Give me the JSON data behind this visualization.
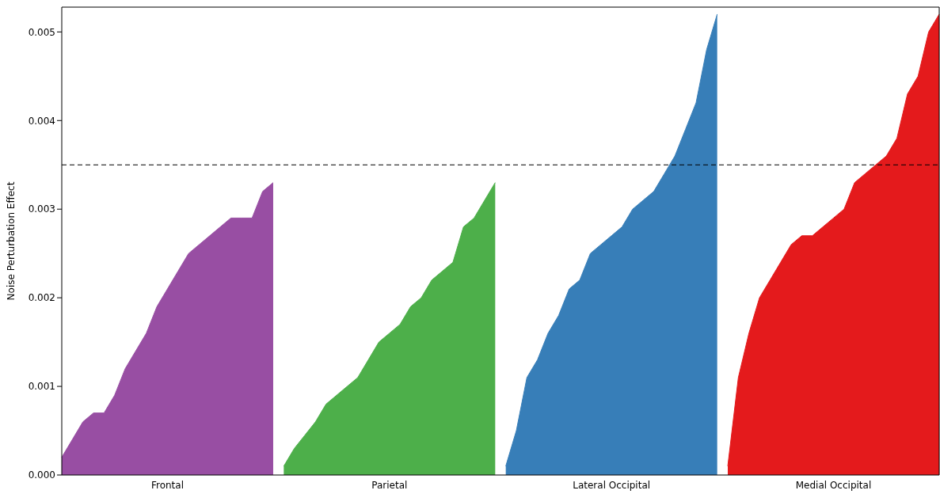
{
  "chart_data": {
    "type": "area",
    "ylabel": "Noise Perturbation Effect",
    "categories": [
      null,
      null,
      null,
      null,
      null,
      null,
      null,
      null,
      null,
      null,
      "Frontal",
      null,
      null,
      null,
      null,
      null,
      null,
      null,
      null,
      null,
      null,
      null,
      null,
      null,
      null,
      null,
      null,
      null,
      null,
      null,
      null,
      "Parietal",
      null,
      null,
      null,
      null,
      null,
      null,
      null,
      null,
      null,
      null,
      null,
      null,
      null,
      null,
      null,
      null,
      null,
      null,
      null,
      null,
      "Lateral Occipital",
      null,
      null,
      null,
      null,
      null,
      null,
      null,
      null,
      null,
      null,
      null,
      null,
      null,
      null,
      null,
      null,
      null,
      null,
      null,
      null,
      "Medial Occipital",
      null,
      null,
      null,
      null,
      null,
      null,
      null,
      null,
      null,
      null
    ],
    "ylim": [
      0,
      0.00528
    ],
    "yticks": [
      {
        "value": 0,
        "label": "0.000"
      },
      0.001,
      0.002,
      0.003,
      0.004,
      0.005
    ],
    "grid": false,
    "legend": false,
    "ref_lines": [
      {
        "axis": "y",
        "value": 0.0035,
        "color": "#000000",
        "line_style": "dashed"
      }
    ],
    "series": [
      {
        "color": "#984ea3",
        "values": [
          0.0002,
          0.0004,
          0.0006,
          0.0007,
          0.0007,
          0.0009,
          0.0012,
          0.0014,
          0.0016,
          0.0019,
          0.0021,
          0.0023,
          0.0025,
          0.0026,
          0.0027,
          0.0028,
          0.0029,
          0.0029,
          0.0029,
          0.0032,
          0.0033,
          null,
          null,
          null,
          null,
          null,
          null,
          null,
          null,
          null,
          null,
          null,
          null,
          null,
          null,
          null,
          null,
          null,
          null,
          null,
          null,
          null,
          null,
          null,
          null,
          null,
          null,
          null,
          null,
          null,
          null,
          null,
          null,
          null,
          null,
          null,
          null,
          null,
          null,
          null,
          null,
          null,
          null,
          null,
          null,
          null,
          null,
          null,
          null,
          null,
          null,
          null,
          null,
          null,
          null,
          null,
          null,
          null,
          null,
          null,
          null,
          null,
          null,
          null
        ]
      },
      {
        "color": "#4daf4a",
        "values": [
          null,
          null,
          null,
          null,
          null,
          null,
          null,
          null,
          null,
          null,
          null,
          null,
          null,
          null,
          null,
          null,
          null,
          null,
          null,
          null,
          null,
          0.0001,
          0.0003,
          0.00045,
          0.0006,
          0.0008,
          0.0009,
          0.001,
          0.0011,
          0.0013,
          0.0015,
          0.0016,
          0.0017,
          0.0019,
          0.002,
          0.0022,
          0.0023,
          0.0024,
          0.0028,
          0.0029,
          0.0031,
          0.0033,
          null,
          null,
          null,
          null,
          null,
          null,
          null,
          null,
          null,
          null,
          null,
          null,
          null,
          null,
          null,
          null,
          null,
          null,
          null,
          null,
          null,
          null,
          null,
          null,
          null,
          null,
          null,
          null,
          null,
          null,
          null,
          null,
          null,
          null,
          null,
          null,
          null,
          null,
          null,
          null,
          null,
          null
        ]
      },
      {
        "color": "#377eb8",
        "values": [
          null,
          null,
          null,
          null,
          null,
          null,
          null,
          null,
          null,
          null,
          null,
          null,
          null,
          null,
          null,
          null,
          null,
          null,
          null,
          null,
          null,
          null,
          null,
          null,
          null,
          null,
          null,
          null,
          null,
          null,
          null,
          null,
          null,
          null,
          null,
          null,
          null,
          null,
          null,
          null,
          null,
          null,
          0.0001,
          0.0005,
          0.0011,
          0.0013,
          0.0016,
          0.0018,
          0.0021,
          0.0022,
          0.0025,
          0.0026,
          0.0027,
          0.0028,
          0.003,
          0.0031,
          0.0032,
          0.0034,
          0.0036,
          0.0039,
          0.0042,
          0.0048,
          0.0052,
          null,
          null,
          null,
          null,
          null,
          null,
          null,
          null,
          null,
          null,
          null,
          null,
          null,
          null,
          null,
          null,
          null,
          null,
          null,
          null,
          null
        ]
      },
      {
        "color": "#e41a1c",
        "values": [
          null,
          null,
          null,
          null,
          null,
          null,
          null,
          null,
          null,
          null,
          null,
          null,
          null,
          null,
          null,
          null,
          null,
          null,
          null,
          null,
          null,
          null,
          null,
          null,
          null,
          null,
          null,
          null,
          null,
          null,
          null,
          null,
          null,
          null,
          null,
          null,
          null,
          null,
          null,
          null,
          null,
          null,
          null,
          null,
          null,
          null,
          null,
          null,
          null,
          null,
          null,
          null,
          null,
          null,
          null,
          null,
          null,
          null,
          null,
          null,
          null,
          null,
          null,
          0.0001,
          0.0011,
          0.0016,
          0.002,
          0.0022,
          0.0024,
          0.0026,
          0.0027,
          0.0027,
          0.0028,
          0.0029,
          0.003,
          0.0033,
          0.0034,
          0.0035,
          0.0036,
          0.0038,
          0.0043,
          0.0045,
          0.005,
          0.0052
        ]
      }
    ]
  }
}
